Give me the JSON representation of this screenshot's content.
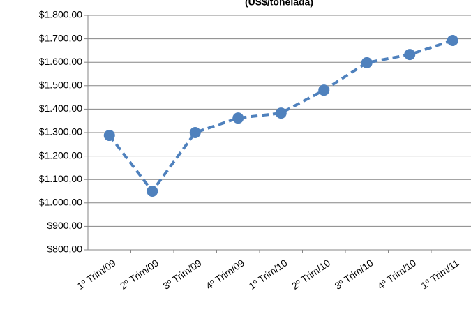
{
  "chart_data": {
    "type": "line",
    "title": "(US$/tonelada)",
    "categories": [
      "1º Trim/09",
      "2º Trim/09",
      "3º Trim/09",
      "4º Trim/09",
      "1º Trim/10",
      "2º Trim/10",
      "3º Trim/10",
      "4º Trim/10",
      "1º Trim/11"
    ],
    "values": [
      1288,
      1050,
      1300,
      1362,
      1383,
      1481,
      1598,
      1633,
      1693
    ],
    "color": "#4f81bd",
    "ylim": [
      800,
      1800
    ],
    "yticks": [
      {
        "value": 800,
        "label": "$800,00"
      },
      {
        "value": 900,
        "label": "$900,00"
      },
      {
        "value": 1000,
        "label": "$1.000,00"
      },
      {
        "value": 1100,
        "label": "$1.100,00"
      },
      {
        "value": 1200,
        "label": "$1.200,00"
      },
      {
        "value": 1300,
        "label": "$1.300,00"
      },
      {
        "value": 1400,
        "label": "$1.400,00"
      },
      {
        "value": 1500,
        "label": "$1.500,00"
      },
      {
        "value": 1600,
        "label": "$1.600,00"
      },
      {
        "value": 1700,
        "label": "$1.700,00"
      },
      {
        "value": 1800,
        "label": "$1.800,00"
      }
    ],
    "grid": true
  }
}
